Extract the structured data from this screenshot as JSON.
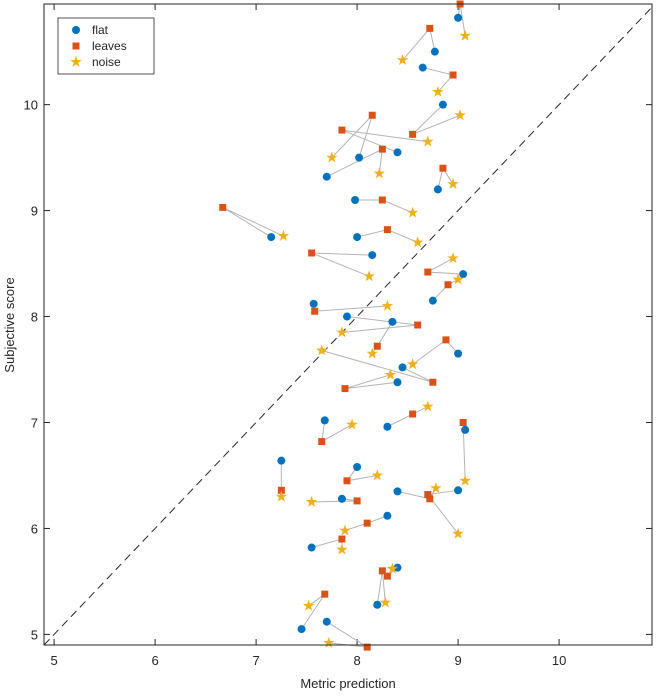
{
  "chart_data": {
    "type": "scatter",
    "xlabel": "Metric prediction",
    "ylabel": "Subjective score",
    "xlim": [
      4.9,
      10.92
    ],
    "ylim": [
      4.9,
      10.95
    ],
    "xticks": [
      5,
      6,
      7,
      8,
      9,
      10
    ],
    "yticks": [
      5,
      6,
      7,
      8,
      9,
      10
    ],
    "legend": "upper left",
    "connect_color": "#b4b4b4",
    "diagonal": true,
    "series": [
      {
        "name": "flat",
        "color": "#0072bd",
        "marker": "circle",
        "x": [
          9.0,
          8.77,
          8.65,
          8.85,
          8.4,
          8.02,
          7.7,
          8.8,
          7.98,
          7.15,
          8.0,
          8.15,
          9.05,
          7.57,
          8.75,
          7.9,
          8.35,
          9.0,
          8.45,
          8.4,
          7.68,
          8.3,
          7.25,
          8.0,
          8.4,
          7.85,
          8.3,
          7.55,
          8.4,
          7.45,
          7.7,
          9.07,
          9.0,
          8.2
        ],
        "values": [
          10.82,
          10.5,
          10.35,
          10.0,
          9.55,
          9.5,
          9.32,
          9.2,
          9.1,
          8.75,
          8.75,
          8.58,
          8.4,
          8.12,
          8.15,
          8.0,
          7.95,
          7.65,
          7.52,
          7.38,
          7.02,
          6.96,
          6.64,
          6.58,
          6.35,
          6.28,
          6.12,
          5.82,
          5.63,
          5.05,
          5.12,
          6.93,
          6.36,
          5.28
        ]
      },
      {
        "name": "leaves",
        "color": "#d95319",
        "marker": "square",
        "x": [
          9.02,
          8.72,
          8.95,
          8.55,
          7.85,
          8.15,
          8.25,
          8.85,
          8.25,
          6.67,
          8.3,
          7.55,
          8.7,
          7.58,
          8.9,
          8.6,
          8.2,
          8.88,
          8.75,
          7.88,
          7.65,
          8.55,
          7.25,
          7.9,
          8.72,
          8.0,
          8.1,
          7.85,
          8.3,
          7.68,
          8.1,
          9.05,
          8.7,
          8.25
        ],
        "values": [
          10.95,
          10.72,
          10.28,
          9.72,
          9.76,
          9.9,
          9.58,
          9.4,
          9.1,
          9.03,
          8.82,
          8.6,
          8.42,
          8.05,
          8.3,
          7.92,
          7.72,
          7.78,
          7.38,
          7.32,
          6.82,
          7.08,
          6.36,
          6.45,
          6.28,
          6.26,
          6.05,
          5.9,
          5.55,
          5.38,
          4.88,
          7.0,
          6.32,
          5.6
        ]
      },
      {
        "name": "noise",
        "color": "#edb120",
        "marker": "star",
        "x": [
          9.07,
          8.45,
          8.8,
          9.02,
          8.7,
          7.75,
          8.22,
          8.95,
          8.55,
          7.27,
          8.6,
          8.12,
          8.95,
          8.3,
          9.0,
          7.85,
          8.15,
          8.55,
          7.65,
          8.33,
          7.95,
          8.7,
          7.25,
          8.2,
          8.78,
          7.55,
          7.88,
          7.85,
          8.35,
          7.52,
          7.72,
          9.07,
          9.0,
          8.28
        ],
        "values": [
          10.65,
          10.42,
          10.12,
          9.9,
          9.65,
          9.5,
          9.35,
          9.25,
          8.98,
          8.76,
          8.7,
          8.38,
          8.55,
          8.1,
          8.35,
          7.85,
          7.65,
          7.55,
          7.68,
          7.45,
          6.98,
          7.15,
          6.3,
          6.5,
          6.38,
          6.25,
          5.98,
          5.8,
          5.62,
          5.27,
          4.92,
          6.45,
          5.95,
          5.3
        ]
      }
    ]
  }
}
